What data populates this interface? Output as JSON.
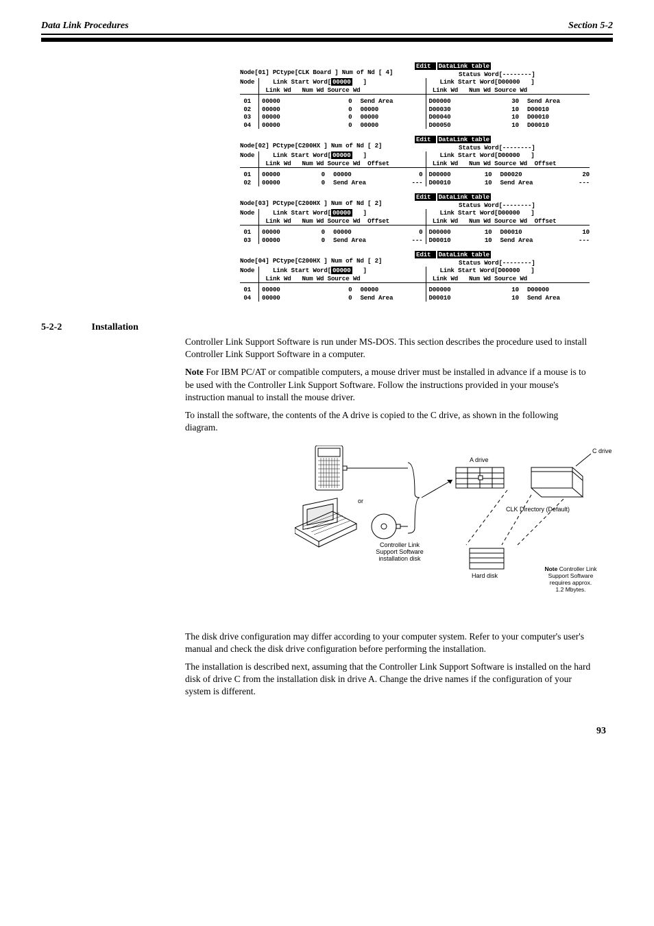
{
  "header": {
    "left": "Data Link Procedures",
    "right": "Section 5-2"
  },
  "screenshots": [
    {
      "nodeLine": " Node[01]  PCtype[CLK Board ]  Num of Nd [ 4]",
      "editLabel": " Edit                 ",
      "dlLabel": "DataLink table",
      "statusLine": "Status Word[--------]",
      "area1": {
        "hdr": "<Area1>   Link Start Word[",
        "startVal": "00000",
        "hdrEnd": "   ]",
        "sub": " Link Wd   Num Wd Source Wd",
        "hasOffset": false
      },
      "area2": {
        "hdr": "<Area2>   Link Start Word[D00000   ]",
        "sub": " Link Wd   Num Wd Source Wd",
        "hasOffset": false
      },
      "rows": [
        {
          "n": "01",
          "a1": [
            "00000",
            "0",
            "Send Area",
            ""
          ],
          "a2": [
            "D00000",
            "30",
            "Send Area",
            ""
          ]
        },
        {
          "n": "02",
          "a1": [
            "00000",
            "0",
            "00000",
            ""
          ],
          "a2": [
            "D00030",
            "10",
            "D00010",
            ""
          ]
        },
        {
          "n": "03",
          "a1": [
            "00000",
            "0",
            "00000",
            ""
          ],
          "a2": [
            "D00040",
            "10",
            "D00010",
            ""
          ]
        },
        {
          "n": "04",
          "a1": [
            "00000",
            "0",
            "00000",
            ""
          ],
          "a2": [
            "D00050",
            "10",
            "D00010",
            ""
          ]
        }
      ]
    },
    {
      "nodeLine": " Node[02]  PCtype[C200HX    ]  Num of Nd [ 2]",
      "editLabel": " Edit                 ",
      "dlLabel": "DataLink table",
      "statusLine": "Status Word[--------]",
      "area1": {
        "hdr": "<Area1>   Link Start Word[",
        "startVal": "00000",
        "hdrEnd": "   ]",
        "sub": " Link Wd   Num Wd Source Wd  Offset",
        "hasOffset": true
      },
      "area2": {
        "hdr": "<Area2>   Link Start Word[D00000   ]",
        "sub": " Link Wd   Num Wd Source Wd  Offset",
        "hasOffset": true
      },
      "rows": [
        {
          "n": "01",
          "a1": [
            "00000",
            "0",
            "00000",
            "0"
          ],
          "a2": [
            "D00000",
            "10",
            "D00020",
            "20"
          ]
        },
        {
          "n": "02",
          "a1": [
            "00000",
            "0",
            "Send Area",
            "---"
          ],
          "a2": [
            "D00010",
            "10",
            "Send Area",
            "---"
          ]
        }
      ]
    },
    {
      "nodeLine": " Node[03]  PCtype[C200HX    ]  Num of Nd [ 2]",
      "editLabel": " Edit                 ",
      "dlLabel": "DataLink table",
      "statusLine": "Status Word[--------]",
      "area1": {
        "hdr": "<Area1>   Link Start Word[",
        "startVal": "00000",
        "hdrEnd": "   ]",
        "sub": " Link Wd   Num Wd Source Wd  Offset",
        "hasOffset": true
      },
      "area2": {
        "hdr": "<Area2>   Link Start Word[D00000   ]",
        "sub": " Link Wd   Num Wd Source Wd  Offset",
        "hasOffset": true
      },
      "rows": [
        {
          "n": "01",
          "a1": [
            "00000",
            "0",
            "00000",
            "0"
          ],
          "a2": [
            "D00000",
            "10",
            "D00010",
            "10"
          ]
        },
        {
          "n": "03",
          "a1": [
            "00000",
            "0",
            "Send Area",
            "---"
          ],
          "a2": [
            "D00010",
            "10",
            "Send Area",
            "---"
          ]
        }
      ]
    },
    {
      "nodeLine": " Node[04]  PCtype[C200HX    ]  Num of Nd [ 2]",
      "editLabel": " Edit                 ",
      "dlLabel": "DataLink table",
      "statusLine": "Status Word[--------]",
      "area1": {
        "hdr": "<Area1>   Link Start Word[",
        "startVal": "00000",
        "hdrEnd": "   ]",
        "sub": " Link Wd   Num Wd Source Wd",
        "hasOffset": false
      },
      "area2": {
        "hdr": "<Area2>   Link Start Word[D00000   ]",
        "sub": " Link Wd   Num Wd Source Wd",
        "hasOffset": false
      },
      "rows": [
        {
          "n": "01",
          "a1": [
            "00000",
            "0",
            "00000",
            ""
          ],
          "a2": [
            "D00000",
            "10",
            "D00000",
            ""
          ]
        },
        {
          "n": "04",
          "a1": [
            "00000",
            "0",
            "Send Area",
            ""
          ],
          "a2": [
            "D00010",
            "10",
            "Send Area",
            ""
          ]
        }
      ]
    }
  ],
  "bodyText": {
    "heading": "5-2-2   Installation",
    "para1": "Controller Link Support Software is run under MS-DOS. This section describes the procedure used to install Controller Link Support Software in a computer.",
    "para2LeadIn": "Note",
    "para2": "For IBM PC/AT or compatible computers, a mouse driver must be installed in advance if a mouse is to be used with the Controller Link Support Software. Follow the instructions provided in your mouse's instruction manual to install the mouse driver.",
    "para3": "To install the software, the contents of the A drive is copied to the C drive, as shown in the following diagram."
  },
  "diagram": {
    "floppy": "Controller Link\nSupport Software\ninstallation disk",
    "aDrive": "A drive",
    "cDrive": "C drive",
    "clkDir": "CLK Directory (Default)",
    "hdd": "Hard disk",
    "note": "Note Controller Link\nSupport Software\nrequires approx.\n1.2 Mbytes."
  },
  "footer": "93"
}
